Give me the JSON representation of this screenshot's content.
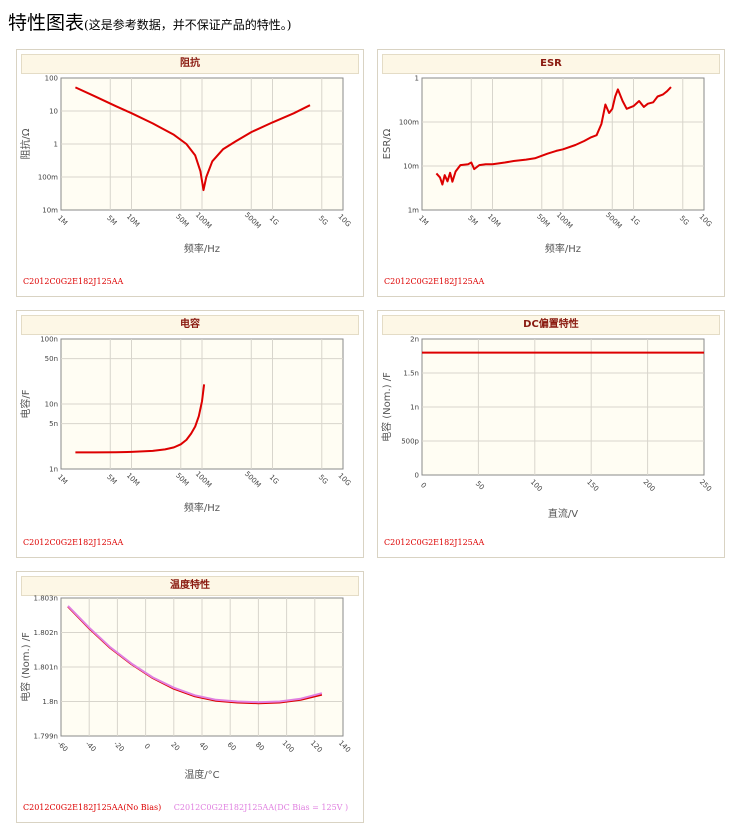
{
  "page": {
    "title": "特性图表",
    "note": "(这是参考数据，并不保证产品的特性。)"
  },
  "chart_data": [
    {
      "id": "impedance",
      "type": "line",
      "title": "阻抗",
      "xlabel": "频率/Hz",
      "ylabel": "阻抗/Ω",
      "xscale": "log",
      "yscale": "log",
      "xlim": [
        1000000,
        10000000000
      ],
      "ylim": [
        0.01,
        100
      ],
      "xticks": [
        {
          "v": 1000000,
          "label": "1M"
        },
        {
          "v": 5000000,
          "label": "5M"
        },
        {
          "v": 10000000,
          "label": "10M"
        },
        {
          "v": 50000000,
          "label": "50M"
        },
        {
          "v": 100000000,
          "label": "100M"
        },
        {
          "v": 500000000,
          "label": "500M"
        },
        {
          "v": 1000000000,
          "label": "1G"
        },
        {
          "v": 5000000000,
          "label": "5G"
        },
        {
          "v": 10000000000,
          "label": "10G"
        }
      ],
      "yticks": [
        {
          "v": 0.01,
          "label": "10m"
        },
        {
          "v": 0.1,
          "label": "100m"
        },
        {
          "v": 1,
          "label": "1"
        },
        {
          "v": 10,
          "label": "10"
        },
        {
          "v": 100,
          "label": "100"
        }
      ],
      "series": [
        {
          "name": "C2012C0G2E182J125AA",
          "color": "#dd0000",
          "x": [
            1600000,
            3000000,
            6000000,
            10000000,
            20000000,
            40000000,
            60000000,
            80000000,
            95000000,
            105000000,
            115000000,
            140000000,
            200000000,
            300000000,
            500000000,
            1000000000,
            2000000000,
            3400000000
          ],
          "y": [
            52,
            28,
            14,
            8.6,
            4.2,
            1.9,
            1.0,
            0.45,
            0.15,
            0.04,
            0.1,
            0.3,
            0.7,
            1.2,
            2.3,
            4.5,
            8.5,
            15
          ]
        }
      ]
    },
    {
      "id": "esr",
      "type": "line",
      "title": "ESR",
      "xlabel": "频率/Hz",
      "ylabel": "ESR/Ω",
      "xscale": "log",
      "yscale": "log",
      "xlim": [
        1000000,
        10000000000
      ],
      "ylim": [
        0.001,
        1
      ],
      "xticks": [
        {
          "v": 1000000,
          "label": "1M"
        },
        {
          "v": 5000000,
          "label": "5M"
        },
        {
          "v": 10000000,
          "label": "10M"
        },
        {
          "v": 50000000,
          "label": "50M"
        },
        {
          "v": 100000000,
          "label": "100M"
        },
        {
          "v": 500000000,
          "label": "500M"
        },
        {
          "v": 1000000000,
          "label": "1G"
        },
        {
          "v": 5000000000,
          "label": "5G"
        },
        {
          "v": 10000000000,
          "label": "10G"
        }
      ],
      "yticks": [
        {
          "v": 0.001,
          "label": "1m"
        },
        {
          "v": 0.01,
          "label": "10m"
        },
        {
          "v": 0.1,
          "label": "100m"
        },
        {
          "v": 1,
          "label": "1"
        }
      ],
      "series": [
        {
          "name": "C2012C0G2E182J125AA",
          "color": "#dd0000",
          "x": [
            1600000,
            1800000,
            1950000,
            2100000,
            2300000,
            2500000,
            2700000,
            3000000,
            3500000,
            4500000,
            5000000,
            5500000,
            6500000,
            8000000,
            10000000,
            15000000,
            20000000,
            30000000,
            40000000,
            60000000,
            80000000,
            100000000,
            150000000,
            200000000,
            250000000,
            300000000,
            350000000,
            400000000,
            450000000,
            500000000,
            550000000,
            600000000,
            700000000,
            800000000,
            1000000000,
            1200000000,
            1400000000,
            1600000000,
            1900000000,
            2200000000,
            2600000000,
            3000000000,
            3400000000
          ],
          "y": [
            0.0068,
            0.0055,
            0.0038,
            0.0062,
            0.0045,
            0.007,
            0.0044,
            0.0075,
            0.0105,
            0.011,
            0.012,
            0.0085,
            0.0105,
            0.011,
            0.011,
            0.012,
            0.013,
            0.014,
            0.015,
            0.019,
            0.022,
            0.024,
            0.03,
            0.037,
            0.045,
            0.05,
            0.09,
            0.25,
            0.16,
            0.2,
            0.38,
            0.55,
            0.3,
            0.2,
            0.23,
            0.3,
            0.22,
            0.26,
            0.28,
            0.38,
            0.42,
            0.5,
            0.62
          ]
        }
      ]
    },
    {
      "id": "capacitance",
      "type": "line",
      "title": "电容",
      "xlabel": "频率/Hz",
      "ylabel": "电容/F",
      "xscale": "log",
      "yscale": "log",
      "xlim": [
        1000000,
        10000000000
      ],
      "ylim": [
        1e-09,
        1e-07
      ],
      "xticks": [
        {
          "v": 1000000,
          "label": "1M"
        },
        {
          "v": 5000000,
          "label": "5M"
        },
        {
          "v": 10000000,
          "label": "10M"
        },
        {
          "v": 50000000,
          "label": "50M"
        },
        {
          "v": 100000000,
          "label": "100M"
        },
        {
          "v": 500000000,
          "label": "500M"
        },
        {
          "v": 1000000000,
          "label": "1G"
        },
        {
          "v": 5000000000,
          "label": "5G"
        },
        {
          "v": 10000000000,
          "label": "10G"
        }
      ],
      "yticks": [
        {
          "v": 1e-09,
          "label": "1n"
        },
        {
          "v": 5e-09,
          "label": "5n"
        },
        {
          "v": 1e-08,
          "label": "10n"
        },
        {
          "v": 5e-08,
          "label": "50n"
        },
        {
          "v": 1e-07,
          "label": "100n"
        }
      ],
      "series": [
        {
          "name": "C2012C0G2E182J125AA",
          "color": "#dd0000",
          "x": [
            1600000,
            3000000,
            6000000,
            10000000,
            20000000,
            30000000,
            40000000,
            50000000,
            60000000,
            70000000,
            80000000,
            90000000,
            100000000,
            107000000
          ],
          "y": [
            1.8e-09,
            1.8e-09,
            1.81e-09,
            1.83e-09,
            1.9e-09,
            2e-09,
            2.15e-09,
            2.4e-09,
            2.8e-09,
            3.5e-09,
            4.5e-09,
            6.5e-09,
            1.1e-08,
            2e-08
          ]
        }
      ]
    },
    {
      "id": "dcbias",
      "type": "line",
      "title": "DC偏置特性",
      "xlabel": "直流/V",
      "ylabel": "电容 (Nom.) /F",
      "xlim": [
        0,
        250
      ],
      "ylim": [
        0,
        2e-09
      ],
      "xticks": [
        {
          "v": 0,
          "label": "0"
        },
        {
          "v": 50,
          "label": "50"
        },
        {
          "v": 100,
          "label": "100"
        },
        {
          "v": 150,
          "label": "150"
        },
        {
          "v": 200,
          "label": "200"
        },
        {
          "v": 250,
          "label": "250"
        }
      ],
      "yticks": [
        {
          "v": 0,
          "label": "0"
        },
        {
          "v": 5e-10,
          "label": "500p"
        },
        {
          "v": 1e-09,
          "label": "1n"
        },
        {
          "v": 1.5e-09,
          "label": "1.5n"
        },
        {
          "v": 2e-09,
          "label": "2n"
        }
      ],
      "series": [
        {
          "name": "C2012C0G2E182J125AA",
          "color": "#dd0000",
          "x": [
            0,
            250
          ],
          "y": [
            1.8e-09,
            1.8e-09
          ]
        }
      ]
    },
    {
      "id": "temperature",
      "type": "line",
      "title": "温度特性",
      "xlabel": "温度/°C",
      "ylabel": "电容 (Nom.) /F",
      "xlim": [
        -60,
        140
      ],
      "ylim": [
        1.799e-09,
        1.803e-09
      ],
      "xticks": [
        {
          "v": -60,
          "label": "-60"
        },
        {
          "v": -40,
          "label": "-40"
        },
        {
          "v": -20,
          "label": "-20"
        },
        {
          "v": 0,
          "label": "0"
        },
        {
          "v": 20,
          "label": "20"
        },
        {
          "v": 40,
          "label": "40"
        },
        {
          "v": 60,
          "label": "60"
        },
        {
          "v": 80,
          "label": "80"
        },
        {
          "v": 100,
          "label": "100"
        },
        {
          "v": 120,
          "label": "120"
        },
        {
          "v": 140,
          "label": "140"
        }
      ],
      "yticks": [
        {
          "v": 1.799e-09,
          "label": "1.799n"
        },
        {
          "v": 1.8e-09,
          "label": "1.8n"
        },
        {
          "v": 1.801e-09,
          "label": "1.801n"
        },
        {
          "v": 1.802e-09,
          "label": "1.802n"
        },
        {
          "v": 1.803e-09,
          "label": "1.803n"
        }
      ],
      "series": [
        {
          "name": "C2012C0G2E182J125AA(No Bias)",
          "color": "#dd0000",
          "x": [
            -55,
            -40,
            -25,
            -10,
            5,
            20,
            35,
            50,
            65,
            80,
            95,
            110,
            125
          ],
          "y": [
            1.80275e-09,
            1.80212e-09,
            1.80155e-09,
            1.80108e-09,
            1.80068e-09,
            1.80037e-09,
            1.80015e-09,
            1.80002e-09,
            1.79997e-09,
            1.79995e-09,
            1.79997e-09,
            1.80005e-09,
            1.8002e-09
          ]
        },
        {
          "name": "C2012C0G2E182J125AA(DC Bias = 125V )",
          "color": "#e080e0",
          "x": [
            -55,
            -40,
            -25,
            -10,
            5,
            20,
            35,
            50,
            65,
            80,
            95,
            110,
            125
          ],
          "y": [
            1.80277e-09,
            1.80214e-09,
            1.80157e-09,
            1.8011e-09,
            1.8007e-09,
            1.8004e-09,
            1.80018e-09,
            1.80005e-09,
            1.8e-09,
            1.79998e-09,
            1.8e-09,
            1.80008e-09,
            1.80024e-09
          ]
        }
      ]
    }
  ]
}
